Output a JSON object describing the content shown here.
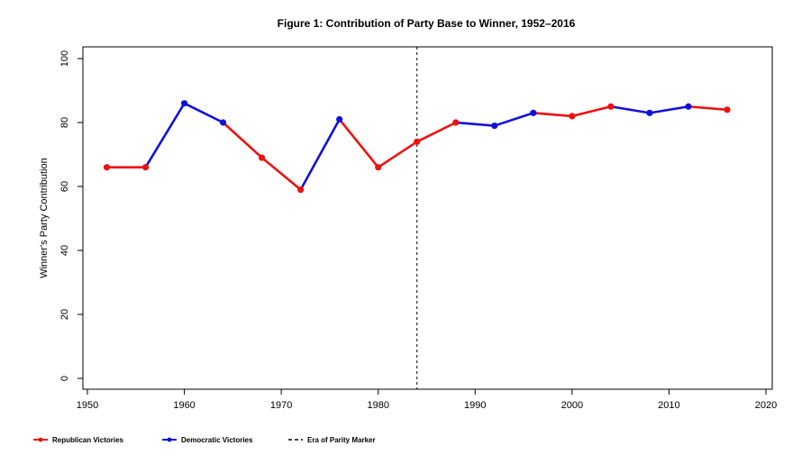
{
  "chart_data": {
    "type": "line",
    "title": "Figure 1: Contribution of Party Base to Winner, 1952–2016",
    "xlabel": "",
    "ylabel": "Winner's Party Contribution",
    "xlim": [
      1950,
      2020
    ],
    "ylim": [
      0,
      100
    ],
    "x_ticks": [
      1950,
      1960,
      1970,
      1980,
      1990,
      2000,
      2010,
      2020
    ],
    "y_ticks": [
      0,
      20,
      40,
      60,
      80,
      100
    ],
    "grid": false,
    "legend_position": "bottom",
    "points": [
      {
        "x": 1952,
        "y": 66,
        "party": "R"
      },
      {
        "x": 1956,
        "y": 66,
        "party": "R"
      },
      {
        "x": 1960,
        "y": 86,
        "party": "D"
      },
      {
        "x": 1964,
        "y": 80,
        "party": "D"
      },
      {
        "x": 1968,
        "y": 69,
        "party": "R"
      },
      {
        "x": 1972,
        "y": 59,
        "party": "R"
      },
      {
        "x": 1976,
        "y": 81,
        "party": "D"
      },
      {
        "x": 1980,
        "y": 66,
        "party": "R"
      },
      {
        "x": 1984,
        "y": 74,
        "party": "R"
      },
      {
        "x": 1988,
        "y": 80,
        "party": "R"
      },
      {
        "x": 1992,
        "y": 79,
        "party": "D"
      },
      {
        "x": 1996,
        "y": 83,
        "party": "D"
      },
      {
        "x": 2000,
        "y": 82,
        "party": "R"
      },
      {
        "x": 2004,
        "y": 85,
        "party": "R"
      },
      {
        "x": 2008,
        "y": 83,
        "party": "D"
      },
      {
        "x": 2012,
        "y": 85,
        "party": "D"
      },
      {
        "x": 2016,
        "y": 84,
        "party": "R"
      }
    ],
    "parity_marker_x": 1984,
    "series": [
      {
        "name": "Republican Victories",
        "color": "#ee1111",
        "party": "R"
      },
      {
        "name": "Democratic Victories",
        "color": "#1111dd",
        "party": "D"
      }
    ],
    "marker_legend": {
      "name": "Era of Parity Marker",
      "style": "dashed",
      "color": "#000000"
    }
  }
}
